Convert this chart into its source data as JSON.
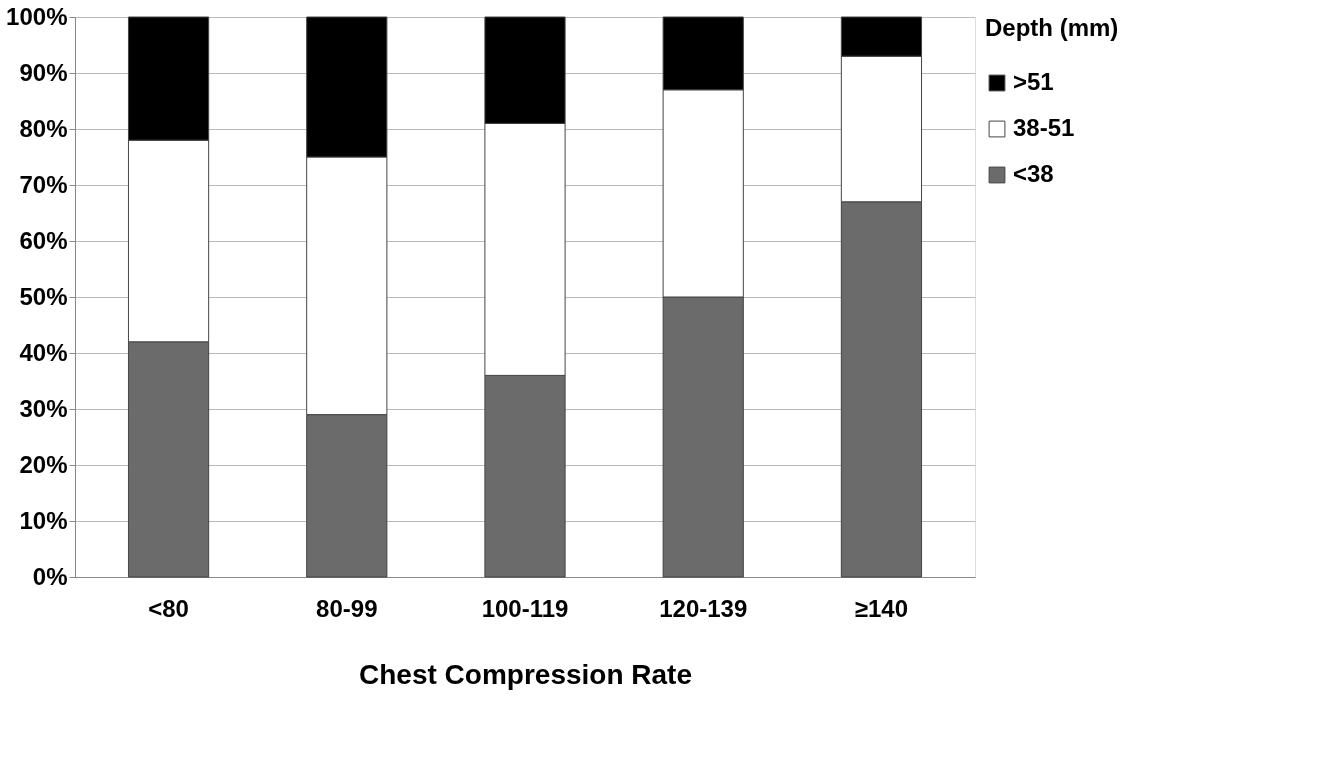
{
  "chart_data": {
    "type": "bar",
    "stacked": true,
    "xlabel": "Chest Compression Rate",
    "legend_title": "Depth (mm)",
    "legend": "right",
    "categories": [
      "<80",
      "80-99",
      "100-119",
      "120-139",
      "≥140"
    ],
    "series": [
      {
        "name": "<38",
        "color": "#6b6b6b",
        "values": [
          42,
          29,
          36,
          50,
          67
        ]
      },
      {
        "name": "38-51",
        "color": "#ffffff",
        "values": [
          36,
          46,
          45,
          37,
          26
        ]
      },
      {
        "name": ">51",
        "color": "#000000",
        "values": [
          22,
          25,
          19,
          13,
          7
        ]
      }
    ],
    "ylim": [
      0,
      100
    ],
    "yticks": [
      {
        "value": 0,
        "label": "0%"
      },
      {
        "value": 10,
        "label": "10%"
      },
      {
        "value": 20,
        "label": "20%"
      },
      {
        "value": 30,
        "label": "30%"
      },
      {
        "value": 40,
        "label": "40%"
      },
      {
        "value": 50,
        "label": "50%"
      },
      {
        "value": 60,
        "label": "60%"
      },
      {
        "value": 70,
        "label": "70%"
      },
      {
        "value": 80,
        "label": "80%"
      },
      {
        "value": 90,
        "label": "90%"
      },
      {
        "value": 100,
        "label": "100%"
      }
    ],
    "grid": "y"
  }
}
